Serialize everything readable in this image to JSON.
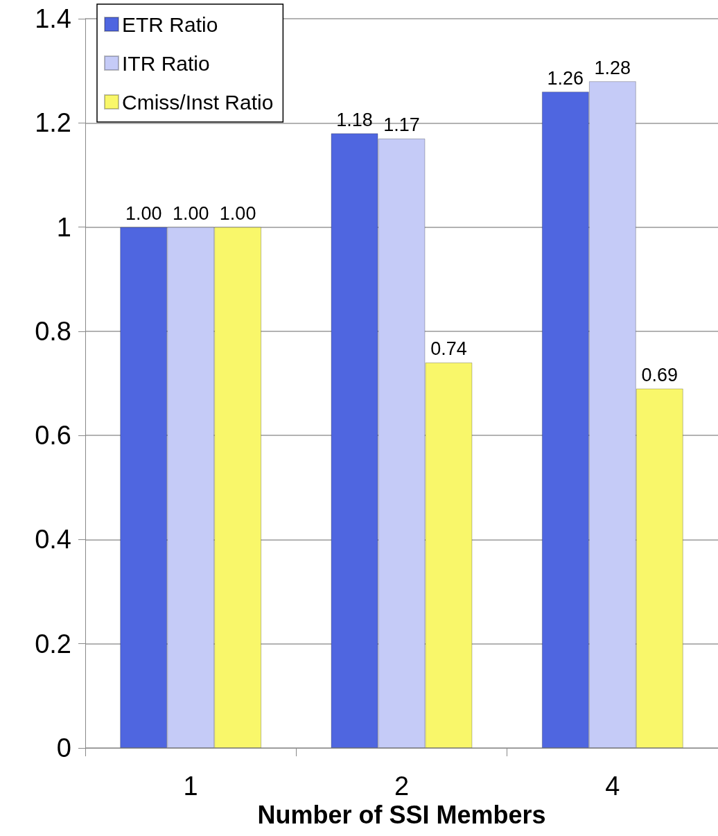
{
  "chart_data": {
    "type": "bar",
    "xlabel": "Number of SSI Members",
    "categories": [
      "1",
      "2",
      "4"
    ],
    "series": [
      {
        "name": "ETR Ratio",
        "color": "#4f66e0",
        "values": [
          1.0,
          1.18,
          1.26
        ],
        "value_labels": [
          "1.00",
          "1.18",
          "1.26"
        ]
      },
      {
        "name": "ITR Ratio",
        "color": "#c5cbf7",
        "values": [
          1.0,
          1.17,
          1.28
        ],
        "value_labels": [
          "1.00",
          "1.17",
          "1.28"
        ]
      },
      {
        "name": "Cmiss/Inst Ratio",
        "color": "#f9f76a",
        "values": [
          1.0,
          0.74,
          0.69
        ],
        "value_labels": [
          "1.00",
          "0.74",
          "0.69"
        ]
      }
    ],
    "ylim": [
      0,
      1.4
    ],
    "yticks": [
      0,
      0.2,
      0.4,
      0.6,
      0.8,
      1,
      1.2,
      1.4
    ],
    "grid": "y",
    "legend": "top left"
  }
}
